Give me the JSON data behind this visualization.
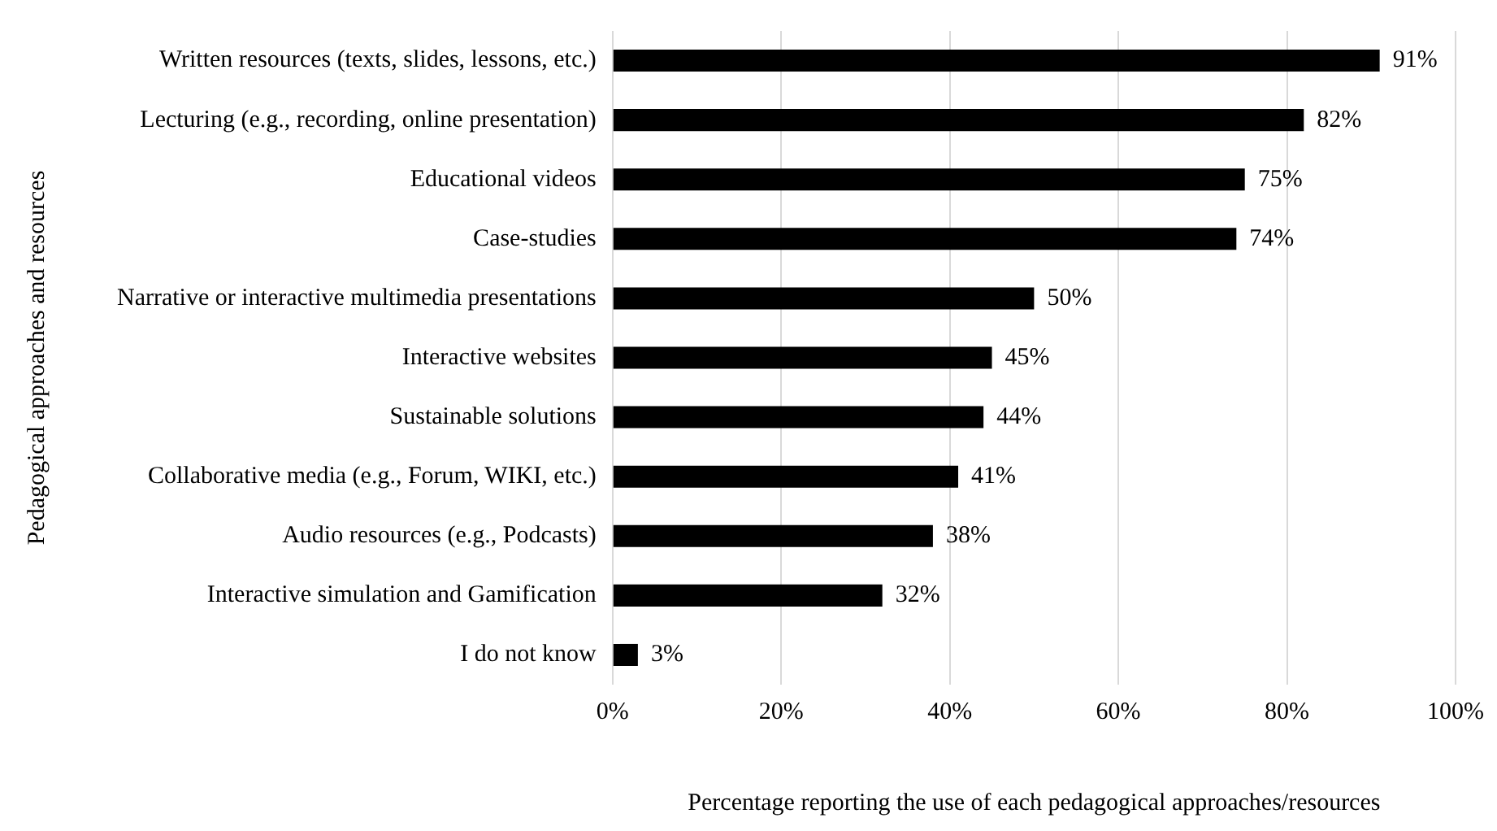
{
  "chart_data": {
    "type": "bar",
    "orientation": "horizontal",
    "xlabel": "Percentage reporting the use of each pedagogical approaches/resources",
    "ylabel": "Pedagogical approaches and resources",
    "categories": [
      "Written resources (texts, slides, lessons, etc.)",
      "Lecturing (e.g., recording, online presentation)",
      "Educational videos",
      "Case-studies",
      "Narrative or interactive multimedia presentations",
      "Interactive websites",
      "Sustainable solutions",
      "Collaborative media (e.g., Forum, WIKI, etc.)",
      "Audio resources (e.g., Podcasts)",
      "Interactive simulation and Gamification",
      "I do not know"
    ],
    "values": [
      91,
      82,
      75,
      74,
      50,
      45,
      44,
      41,
      38,
      32,
      3
    ],
    "value_labels": [
      "91%",
      "82%",
      "75%",
      "74%",
      "50%",
      "45%",
      "44%",
      "41%",
      "38%",
      "32%",
      "3%"
    ],
    "color": "#000000",
    "xlim": [
      0,
      100
    ],
    "xticks": [
      {
        "value": 0,
        "label": "0%"
      },
      {
        "value": 20,
        "label": "20%"
      },
      {
        "value": 40,
        "label": "40%"
      },
      {
        "value": 60,
        "label": "60%"
      },
      {
        "value": 80,
        "label": "80%"
      },
      {
        "value": 100,
        "label": "100%"
      }
    ],
    "grid": "x",
    "legend": false
  }
}
